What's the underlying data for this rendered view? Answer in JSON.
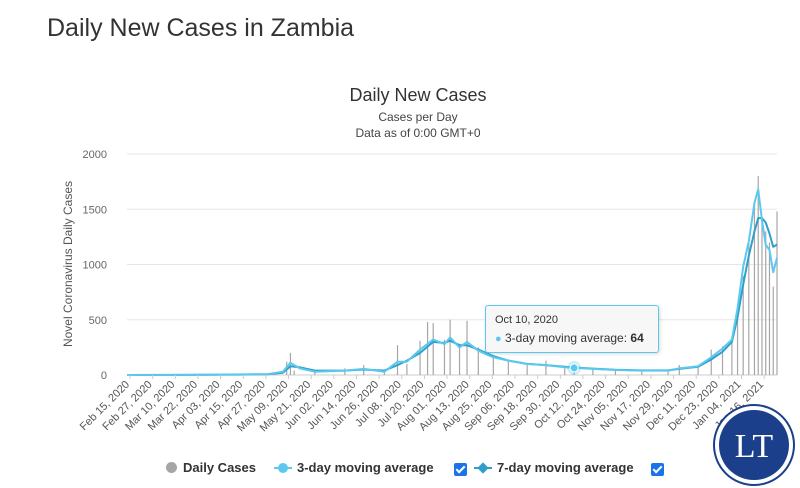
{
  "page": {
    "title": "Daily New Cases in Zambia"
  },
  "chart_data": {
    "type": "bar",
    "title": "Daily New Cases",
    "subtitle_1": "Cases per Day",
    "subtitle_2": "Data as of 0:00 GMT+0",
    "ylabel": "Novel Coronavirus Daily Cases",
    "xlabel": "",
    "ylim": [
      0,
      2000
    ],
    "yticks": [
      "0",
      "500",
      "1000",
      "1500",
      "2000"
    ],
    "ytick_values": [
      0,
      500,
      1000,
      1500,
      2000
    ],
    "grid": true,
    "legend_placement": "bottom",
    "x_start": "2020-02-15",
    "x_end": "2021-01-26",
    "xtick_labels": [
      "Feb 15, 2020",
      "Feb 27, 2020",
      "Mar 10, 2020",
      "Mar 22, 2020",
      "Apr 03, 2020",
      "Apr 15, 2020",
      "Apr 27, 2020",
      "May 09, 2020",
      "May 21, 2020",
      "Jun 02, 2020",
      "Jun 14, 2020",
      "Jun 26, 2020",
      "Jul 08, 2020",
      "Jul 20, 2020",
      "Aug 01, 2020",
      "Aug 13, 2020",
      "Aug 25, 2020",
      "Sep 06, 2020",
      "Sep 18, 2020",
      "Sep 30, 2020",
      "Oct 12, 2020",
      "Oct 24, 2020",
      "Nov 05, 2020",
      "Nov 17, 2020",
      "Nov 29, 2020",
      "Dec 11, 2020",
      "Dec 23, 2020",
      "Jan 04, 2021",
      "Jan 16, 2021"
    ],
    "series": [
      {
        "name": "Daily Cases",
        "type": "bar",
        "color": "#a6a6a6",
        "points": [
          [
            "2020-03-18",
            2
          ],
          [
            "2020-04-15",
            10
          ],
          [
            "2020-04-30",
            15
          ],
          [
            "2020-05-10",
            120
          ],
          [
            "2020-05-12",
            200
          ],
          [
            "2020-05-14",
            40
          ],
          [
            "2020-05-25",
            30
          ],
          [
            "2020-06-10",
            60
          ],
          [
            "2020-06-20",
            90
          ],
          [
            "2020-07-01",
            50
          ],
          [
            "2020-07-08",
            270
          ],
          [
            "2020-07-13",
            100
          ],
          [
            "2020-07-20",
            310
          ],
          [
            "2020-07-24",
            480
          ],
          [
            "2020-07-27",
            470
          ],
          [
            "2020-08-02",
            320
          ],
          [
            "2020-08-05",
            500
          ],
          [
            "2020-08-10",
            280
          ],
          [
            "2020-08-14",
            490
          ],
          [
            "2020-08-20",
            250
          ],
          [
            "2020-08-28",
            180
          ],
          [
            "2020-09-05",
            140
          ],
          [
            "2020-09-15",
            90
          ],
          [
            "2020-09-25",
            130
          ],
          [
            "2020-10-05",
            60
          ],
          [
            "2020-10-10",
            80
          ],
          [
            "2020-10-20",
            55
          ],
          [
            "2020-11-01",
            50
          ],
          [
            "2020-11-15",
            40
          ],
          [
            "2020-11-29",
            45
          ],
          [
            "2020-12-05",
            90
          ],
          [
            "2020-12-15",
            80
          ],
          [
            "2020-12-22",
            230
          ],
          [
            "2020-12-28",
            260
          ],
          [
            "2021-01-02",
            300
          ],
          [
            "2021-01-05",
            510
          ],
          [
            "2021-01-08",
            900
          ],
          [
            "2021-01-11",
            1200
          ],
          [
            "2021-01-14",
            1540
          ],
          [
            "2021-01-16",
            1800
          ],
          [
            "2021-01-18",
            1400
          ],
          [
            "2021-01-20",
            1300
          ],
          [
            "2021-01-22",
            1200
          ],
          [
            "2021-01-24",
            800
          ],
          [
            "2021-01-26",
            1480
          ]
        ]
      },
      {
        "name": "3-day moving average",
        "type": "line",
        "color": "#5bc8ef",
        "points": [
          [
            "2020-02-15",
            0
          ],
          [
            "2020-03-18",
            1
          ],
          [
            "2020-04-15",
            5
          ],
          [
            "2020-04-30",
            8
          ],
          [
            "2020-05-08",
            30
          ],
          [
            "2020-05-12",
            110
          ],
          [
            "2020-05-17",
            60
          ],
          [
            "2020-05-25",
            30
          ],
          [
            "2020-06-10",
            40
          ],
          [
            "2020-06-20",
            55
          ],
          [
            "2020-07-01",
            30
          ],
          [
            "2020-07-08",
            120
          ],
          [
            "2020-07-13",
            120
          ],
          [
            "2020-07-20",
            230
          ],
          [
            "2020-07-27",
            320
          ],
          [
            "2020-08-02",
            280
          ],
          [
            "2020-08-05",
            340
          ],
          [
            "2020-08-10",
            250
          ],
          [
            "2020-08-14",
            300
          ],
          [
            "2020-08-20",
            220
          ],
          [
            "2020-08-28",
            160
          ],
          [
            "2020-09-05",
            130
          ],
          [
            "2020-09-15",
            100
          ],
          [
            "2020-09-25",
            90
          ],
          [
            "2020-10-05",
            70
          ],
          [
            "2020-10-10",
            64
          ],
          [
            "2020-10-20",
            55
          ],
          [
            "2020-11-01",
            45
          ],
          [
            "2020-11-15",
            40
          ],
          [
            "2020-11-29",
            40
          ],
          [
            "2020-12-05",
            60
          ],
          [
            "2020-12-15",
            80
          ],
          [
            "2020-12-22",
            160
          ],
          [
            "2020-12-28",
            240
          ],
          [
            "2021-01-02",
            320
          ],
          [
            "2021-01-05",
            600
          ],
          [
            "2021-01-08",
            980
          ],
          [
            "2021-01-11",
            1210
          ],
          [
            "2021-01-14",
            1560
          ],
          [
            "2021-01-16",
            1680
          ],
          [
            "2021-01-18",
            1400
          ],
          [
            "2021-01-20",
            1180
          ],
          [
            "2021-01-22",
            1130
          ],
          [
            "2021-01-24",
            930
          ],
          [
            "2021-01-26",
            1060
          ]
        ]
      },
      {
        "name": "7-day moving average",
        "type": "line",
        "color": "#2f9fc9",
        "points": [
          [
            "2020-02-15",
            0
          ],
          [
            "2020-03-18",
            1
          ],
          [
            "2020-04-15",
            4
          ],
          [
            "2020-04-30",
            7
          ],
          [
            "2020-05-08",
            20
          ],
          [
            "2020-05-12",
            80
          ],
          [
            "2020-05-17",
            70
          ],
          [
            "2020-05-25",
            40
          ],
          [
            "2020-06-10",
            40
          ],
          [
            "2020-06-20",
            50
          ],
          [
            "2020-07-01",
            40
          ],
          [
            "2020-07-08",
            90
          ],
          [
            "2020-07-13",
            130
          ],
          [
            "2020-07-20",
            200
          ],
          [
            "2020-07-27",
            300
          ],
          [
            "2020-08-02",
            290
          ],
          [
            "2020-08-05",
            310
          ],
          [
            "2020-08-10",
            270
          ],
          [
            "2020-08-14",
            270
          ],
          [
            "2020-08-20",
            230
          ],
          [
            "2020-08-28",
            170
          ],
          [
            "2020-09-05",
            130
          ],
          [
            "2020-09-15",
            100
          ],
          [
            "2020-09-25",
            90
          ],
          [
            "2020-10-05",
            75
          ],
          [
            "2020-10-10",
            68
          ],
          [
            "2020-10-20",
            58
          ],
          [
            "2020-11-01",
            48
          ],
          [
            "2020-11-15",
            42
          ],
          [
            "2020-11-29",
            42
          ],
          [
            "2020-12-05",
            55
          ],
          [
            "2020-12-15",
            75
          ],
          [
            "2020-12-22",
            140
          ],
          [
            "2020-12-28",
            210
          ],
          [
            "2021-01-02",
            300
          ],
          [
            "2021-01-05",
            520
          ],
          [
            "2021-01-08",
            820
          ],
          [
            "2021-01-11",
            1080
          ],
          [
            "2021-01-14",
            1300
          ],
          [
            "2021-01-16",
            1420
          ],
          [
            "2021-01-18",
            1420
          ],
          [
            "2021-01-20",
            1380
          ],
          [
            "2021-01-22",
            1280
          ],
          [
            "2021-01-24",
            1160
          ],
          [
            "2021-01-26",
            1180
          ]
        ]
      }
    ],
    "tooltip": {
      "date": "Oct 10, 2020",
      "series": "3-day moving average",
      "label": "3-day moving average: ",
      "value": "64"
    }
  },
  "legend": {
    "daily_cases": "Daily Cases",
    "three_day": "3-day moving average",
    "seven_day": "7-day moving average"
  },
  "logo": {
    "text": "LT",
    "color": "#1b3f8b"
  },
  "colors": {
    "bar": "#a6a6a6",
    "line_3day": "#5bc8ef",
    "line_7day": "#2f9fc9",
    "checkbox": "#1a73e8"
  }
}
